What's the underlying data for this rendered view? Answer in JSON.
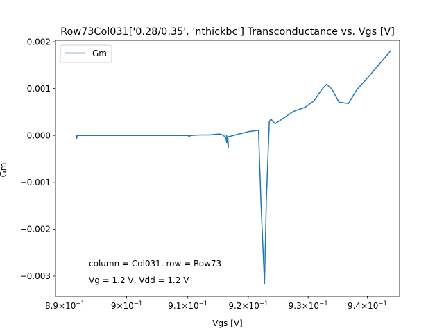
{
  "chart_data": {
    "type": "line",
    "title": "Row73Col031['0.28/0.35', 'nthickbc'] Transconductance vs. Vgs [V]",
    "xlabel": "Vgs [V]",
    "ylabel": "Gm",
    "xscale": "log",
    "xlim": [
      0.8885,
      0.9455
    ],
    "ylim": [
      -0.00343,
      0.00203
    ],
    "grid": false,
    "legend_position": "top-left",
    "x_ticks": [
      {
        "value": 0.89,
        "mantissa": "8.9",
        "base": "10",
        "exp": "−1"
      },
      {
        "value": 0.9,
        "mantissa": "9",
        "base": "10",
        "exp": "−1"
      },
      {
        "value": 0.91,
        "mantissa": "9.1",
        "base": "10",
        "exp": "−1"
      },
      {
        "value": 0.92,
        "mantissa": "9.2",
        "base": "10",
        "exp": "−1"
      },
      {
        "value": 0.93,
        "mantissa": "9.3",
        "base": "10",
        "exp": "−1"
      },
      {
        "value": 0.94,
        "mantissa": "9.4",
        "base": "10",
        "exp": "−1"
      }
    ],
    "y_ticks": [
      {
        "value": 0.002,
        "label": "0.002"
      },
      {
        "value": 0.001,
        "label": "0.001"
      },
      {
        "value": 0.0,
        "label": "0.000"
      },
      {
        "value": -0.001,
        "label": "−0.001"
      },
      {
        "value": -0.002,
        "label": "−0.002"
      },
      {
        "value": -0.003,
        "label": "−0.003"
      }
    ],
    "annotations": [
      "column = Col031, row = Row73",
      "Vg = 1.2 V, Vdd = 1.2 V"
    ],
    "series": [
      {
        "name": "Gm",
        "color": "#1f77b4",
        "x": [
          0.8918,
          0.8919,
          0.892,
          0.8922,
          0.8928,
          0.895,
          0.9,
          0.905,
          0.91,
          0.9102,
          0.9105,
          0.912,
          0.9135,
          0.9152,
          0.9158,
          0.9163,
          0.9164,
          0.9164,
          0.9166,
          0.9167,
          0.9166,
          0.9185,
          0.92,
          0.9217,
          0.9221,
          0.9227,
          0.923,
          0.9235,
          0.9238,
          0.924,
          0.9245,
          0.926,
          0.9275,
          0.9295,
          0.931,
          0.9323,
          0.9331,
          0.934,
          0.9352,
          0.9368,
          0.9382,
          0.9402,
          0.944
        ],
        "y": [
          0.0,
          -7e-05,
          0.0,
          0.0,
          0.0,
          0.0,
          0.0,
          0.0,
          0.0,
          -2e-05,
          0.0,
          1e-05,
          1e-05,
          3e-05,
          1e-05,
          -5e-05,
          -0.00015,
          0.0,
          -0.00018,
          -0.00025,
          -3e-05,
          3e-05,
          8e-05,
          0.00011,
          -0.0014,
          -0.00316,
          -0.0014,
          0.0003,
          0.00035,
          0.00031,
          0.00025,
          0.00038,
          0.00051,
          0.0006,
          0.00074,
          0.00098,
          0.00109,
          0.00099,
          0.00071,
          0.00068,
          0.00097,
          0.00125,
          0.00181
        ]
      }
    ]
  }
}
